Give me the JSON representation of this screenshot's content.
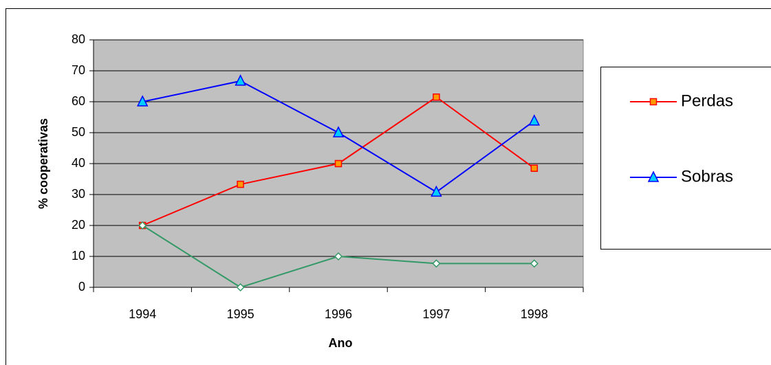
{
  "chart_data": {
    "type": "line",
    "x_label": "Ano",
    "y_label": "% cooperativas",
    "categories": [
      "1994",
      "1995",
      "1996",
      "1997",
      "1998"
    ],
    "series": [
      {
        "name": "Perdas",
        "color": "#ff0000",
        "marker": "square",
        "marker_fill": "#ff9900",
        "values": [
          20,
          33.3,
          40,
          61.5,
          38.5
        ]
      },
      {
        "name": "Sobras",
        "color": "#0000ff",
        "marker": "triangle",
        "marker_fill": "#00ccff",
        "values": [
          60,
          66.7,
          50,
          30.8,
          53.8
        ]
      },
      {
        "color": "#339966",
        "marker": "diamond",
        "marker_fill": "#ffffff",
        "values": [
          20,
          0,
          10,
          7.7,
          7.7
        ]
      }
    ],
    "ylim": [
      0,
      80
    ],
    "yticks": [
      0,
      10,
      20,
      30,
      40,
      50,
      60,
      70,
      80
    ],
    "grid": true,
    "plot_background": "#c0c0c0",
    "legend": "right"
  }
}
